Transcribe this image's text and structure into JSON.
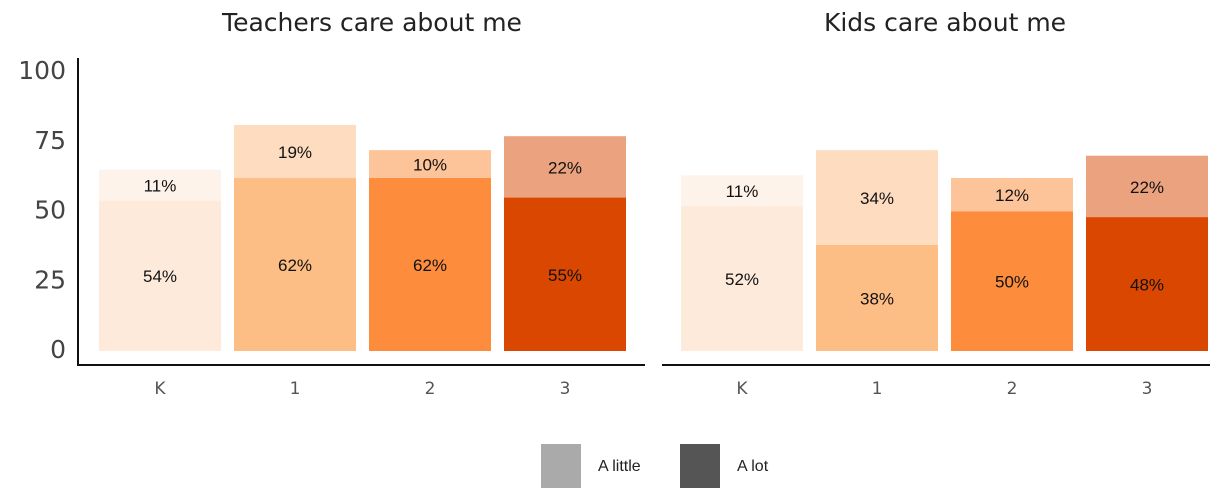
{
  "chart_data": [
    {
      "type": "bar",
      "stacked": true,
      "title": "Teachers care about me",
      "categories": [
        "K",
        "1",
        "2",
        "3"
      ],
      "series": [
        {
          "colors": [
            "#feeadb",
            "#fdbe85",
            "#fd8d3c",
            "#d94701"
          ],
          "values": [
            54,
            62,
            62,
            55
          ],
          "value_labels": [
            "54%",
            "62%",
            "62%",
            "55%"
          ]
        },
        {
          "colors": [
            "#fef3ea",
            "#fddcbf",
            "#fdc49a",
            "#eba27f"
          ],
          "values": [
            11,
            19,
            10,
            22
          ],
          "value_labels": [
            "11%",
            "19%",
            "10%",
            "22%"
          ]
        }
      ],
      "ylim": [
        0,
        100
      ],
      "yticks": [
        0,
        25,
        50,
        75,
        100
      ]
    },
    {
      "type": "bar",
      "stacked": true,
      "title": "Kids care about me",
      "categories": [
        "K",
        "1",
        "2",
        "3"
      ],
      "series": [
        {
          "colors": [
            "#feeadb",
            "#fdbe85",
            "#fd8d3c",
            "#d94701"
          ],
          "values": [
            52,
            38,
            50,
            48
          ],
          "value_labels": [
            "52%",
            "38%",
            "50%",
            "48%"
          ]
        },
        {
          "colors": [
            "#fef3ea",
            "#fddcbf",
            "#fdc49a",
            "#eba27f"
          ],
          "values": [
            11,
            34,
            12,
            22
          ],
          "value_labels": [
            "11%",
            "34%",
            "12%",
            "22%"
          ]
        }
      ],
      "ylim": [
        0,
        100
      ]
    }
  ],
  "legend": [
    {
      "name": "A little",
      "color": "#aaaaaa"
    },
    {
      "name": "A lot",
      "color": "#555555"
    }
  ]
}
